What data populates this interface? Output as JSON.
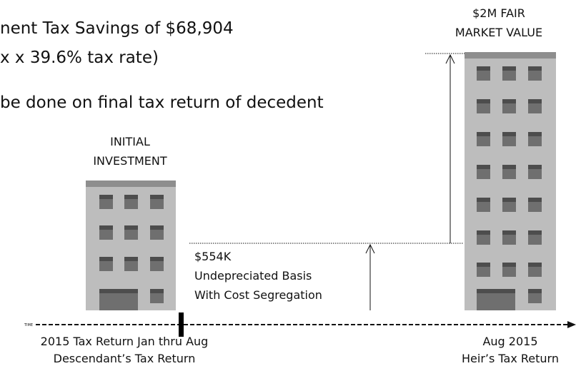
{
  "header": {
    "lines": [
      "nent Tax Savings of  $68,904",
      "x x 39.6% tax rate)",
      "be done on final tax return of decedent"
    ]
  },
  "initial": {
    "label": [
      "INITIAL",
      "INVESTMENT"
    ]
  },
  "fair": {
    "label": [
      "$2M FAIR",
      "MARKET VALUE"
    ]
  },
  "basis": {
    "label": [
      "$554K",
      "Undepreciated  Basis",
      "With Cost Segregation"
    ]
  },
  "timeline": {
    "label": "TIME",
    "left": [
      "2015 Tax Return Jan thru Aug",
      "Descendant’s Tax Return"
    ],
    "right": [
      "Aug 2015",
      "Heir’s Tax Return"
    ]
  }
}
